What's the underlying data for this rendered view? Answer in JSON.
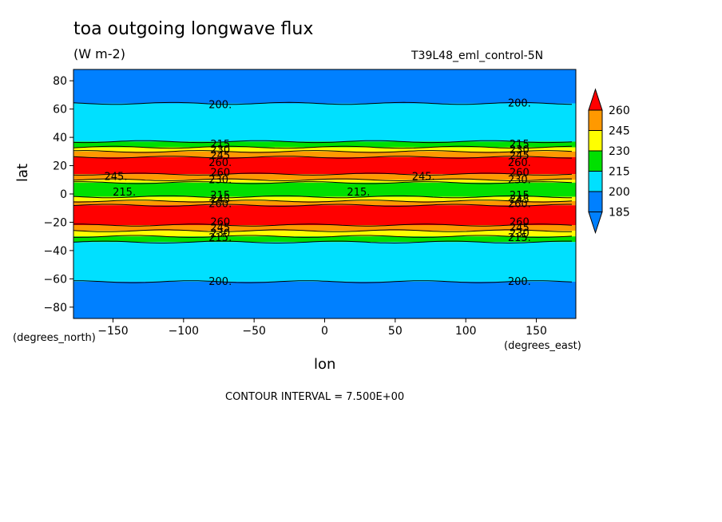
{
  "chart_data": {
    "type": "heatmap",
    "title": "toa outgoing longwave flux",
    "units": "(W m-2)",
    "dataset": "T39L48_eml_control-5N",
    "xlabel": "lon",
    "xunit": "(degrees_east)",
    "ylabel": "lat",
    "yunit": "(degrees_north)",
    "xlim": [
      -178,
      178
    ],
    "ylim": [
      -88,
      88
    ],
    "xticks": [
      -150,
      -100,
      -50,
      0,
      50,
      100,
      150
    ],
    "yticks": [
      -80,
      -60,
      -40,
      -20,
      0,
      20,
      40,
      60,
      80
    ],
    "contour_interval": "CONTOUR INTERVAL = 7.500E+00",
    "colorbar": {
      "labels": [
        185,
        200,
        215,
        230,
        245,
        260
      ],
      "colors": [
        "#0080ff",
        "#00e0ff",
        "#00e000",
        "#ffff00",
        "#ff9900",
        "#ff0000"
      ]
    },
    "bands": [
      {
        "lat_min": 64,
        "lat_max": 88,
        "level": "185"
      },
      {
        "lat_min": 37,
        "lat_max": 64,
        "level": "200"
      },
      {
        "lat_min": 33,
        "lat_max": 37,
        "level": "215"
      },
      {
        "lat_min": 30,
        "lat_max": 33,
        "level": "230"
      },
      {
        "lat_min": 26,
        "lat_max": 30,
        "level": "245"
      },
      {
        "lat_min": 14,
        "lat_max": 26,
        "level": "260"
      },
      {
        "lat_min": 10,
        "lat_max": 14,
        "level": "245"
      },
      {
        "lat_min": 8,
        "lat_max": 10,
        "level": "230"
      },
      {
        "lat_min": -2,
        "lat_max": 8,
        "level": "215"
      },
      {
        "lat_min": -5,
        "lat_max": -2,
        "level": "230"
      },
      {
        "lat_min": -8,
        "lat_max": -5,
        "level": "245"
      },
      {
        "lat_min": -22,
        "lat_max": -8,
        "level": "260"
      },
      {
        "lat_min": -26,
        "lat_max": -22,
        "level": "245"
      },
      {
        "lat_min": -30,
        "lat_max": -26,
        "level": "230"
      },
      {
        "lat_min": -34,
        "lat_max": -30,
        "level": "215"
      },
      {
        "lat_min": -62,
        "lat_max": -34,
        "level": "200"
      },
      {
        "lat_min": -88,
        "lat_max": -62,
        "level": "185"
      }
    ],
    "contour_labels": [
      {
        "lon": -74,
        "lat": 63,
        "text": "200."
      },
      {
        "lon": 138,
        "lat": 64,
        "text": "200."
      },
      {
        "lon": -74,
        "lat": -62,
        "text": "200."
      },
      {
        "lon": 138,
        "lat": -62,
        "text": "200."
      },
      {
        "lon": -142,
        "lat": 1,
        "text": "215."
      },
      {
        "lon": 24,
        "lat": 1,
        "text": "215."
      },
      {
        "lon": -148,
        "lat": 12,
        "text": "245."
      },
      {
        "lon": 70,
        "lat": 12,
        "text": "245."
      },
      {
        "lon": -74,
        "lat": 35,
        "text": "215"
      },
      {
        "lon": 138,
        "lat": 35,
        "text": "215"
      },
      {
        "lon": -74,
        "lat": 31,
        "text": "230"
      },
      {
        "lon": 138,
        "lat": 31,
        "text": "230"
      },
      {
        "lon": -74,
        "lat": 27,
        "text": "245"
      },
      {
        "lon": 138,
        "lat": 27,
        "text": "245"
      },
      {
        "lon": -74,
        "lat": 22,
        "text": "260."
      },
      {
        "lon": 138,
        "lat": 22,
        "text": "260."
      },
      {
        "lon": -74,
        "lat": 15,
        "text": "260"
      },
      {
        "lon": 138,
        "lat": 15,
        "text": "260"
      },
      {
        "lon": -74,
        "lat": 10,
        "text": "230."
      },
      {
        "lon": 138,
        "lat": 10,
        "text": "230."
      },
      {
        "lon": -74,
        "lat": -1,
        "text": "215"
      },
      {
        "lon": 138,
        "lat": -1,
        "text": "215"
      },
      {
        "lon": -74,
        "lat": -4,
        "text": "245"
      },
      {
        "lon": 138,
        "lat": -4,
        "text": "245"
      },
      {
        "lon": -74,
        "lat": -7,
        "text": "260."
      },
      {
        "lon": 138,
        "lat": -7,
        "text": "260."
      },
      {
        "lon": -74,
        "lat": -20,
        "text": "260"
      },
      {
        "lon": 138,
        "lat": -20,
        "text": "260"
      },
      {
        "lon": -74,
        "lat": -24,
        "text": "245"
      },
      {
        "lon": 138,
        "lat": -24,
        "text": "245"
      },
      {
        "lon": -74,
        "lat": -28,
        "text": "230"
      },
      {
        "lon": 138,
        "lat": -28,
        "text": "230"
      },
      {
        "lon": -74,
        "lat": -31,
        "text": "215."
      },
      {
        "lon": 138,
        "lat": -31,
        "text": "215."
      }
    ]
  }
}
